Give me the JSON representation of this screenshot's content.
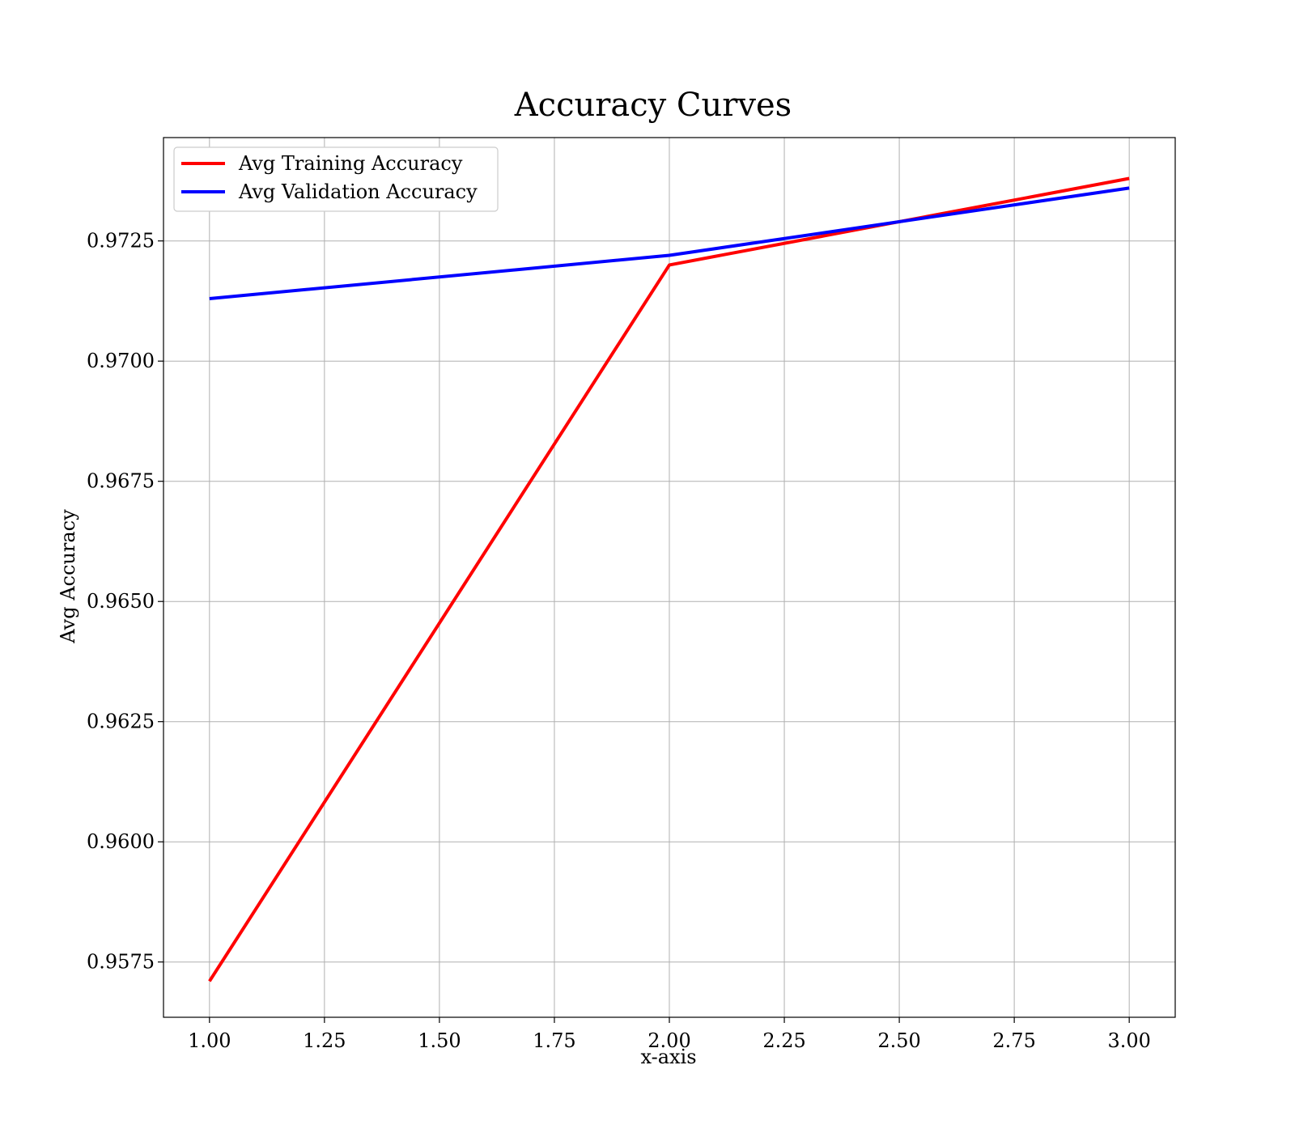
{
  "chart_data": {
    "type": "line",
    "title": "Accuracy Curves",
    "xlabel": "x-axis",
    "ylabel": "Avg Accuracy",
    "x": [
      1,
      2,
      3
    ],
    "xlim": [
      0.9,
      3.1
    ],
    "ylim": [
      0.95635,
      0.97465
    ],
    "xticks": [
      1.0,
      1.25,
      1.5,
      1.75,
      2.0,
      2.25,
      2.5,
      2.75,
      3.0
    ],
    "xtick_labels": [
      "1.00",
      "1.25",
      "1.50",
      "1.75",
      "2.00",
      "2.25",
      "2.50",
      "2.75",
      "3.00"
    ],
    "yticks": [
      0.9575,
      0.96,
      0.9625,
      0.965,
      0.9675,
      0.97,
      0.9725
    ],
    "ytick_labels": [
      "0.9575",
      "0.9600",
      "0.9625",
      "0.9650",
      "0.9675",
      "0.9700",
      "0.9725"
    ],
    "grid": true,
    "legend_position": "top-left",
    "series": [
      {
        "name": "Avg Training Accuracy",
        "color": "#ff0000",
        "values": [
          0.9571,
          0.972,
          0.9738
        ]
      },
      {
        "name": "Avg Validation Accuracy",
        "color": "#0000ff",
        "values": [
          0.9713,
          0.9722,
          0.9736
        ]
      }
    ]
  }
}
